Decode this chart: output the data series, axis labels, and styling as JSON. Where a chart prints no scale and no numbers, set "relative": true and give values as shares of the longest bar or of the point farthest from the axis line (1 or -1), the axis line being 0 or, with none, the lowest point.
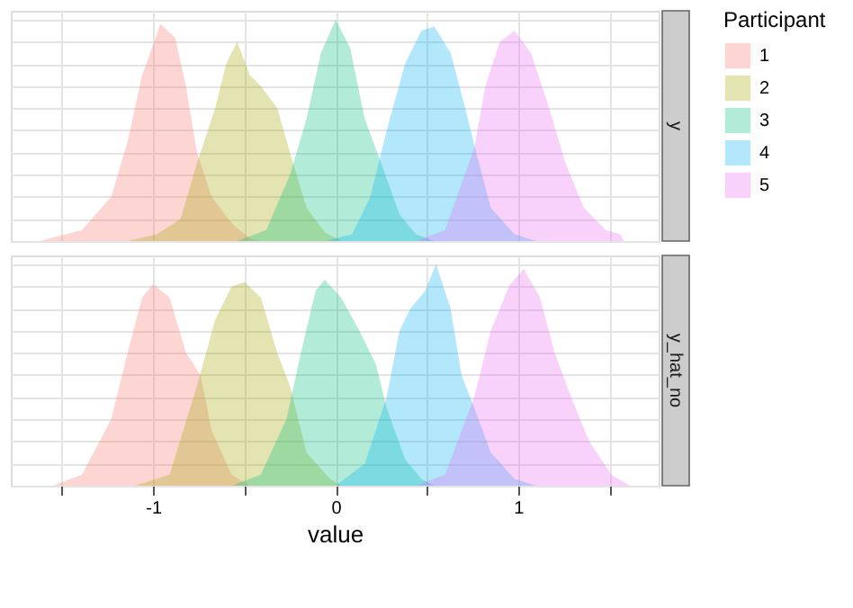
{
  "chart_data": [
    {
      "type": "area",
      "relative": true,
      "y2label": "y",
      "legend_title": "Participant",
      "legend": "right",
      "grid": true,
      "tick_labels": false,
      "xlim": [
        -1.78,
        1.77
      ],
      "xticks": [
        {
          "value": -1.5,
          "label": null
        },
        -1,
        {
          "value": -0.5,
          "label": null
        },
        0,
        {
          "value": 0.5,
          "label": null
        },
        1,
        {
          "value": 1.5,
          "label": null
        }
      ],
      "series": [
        {
          "name": "1",
          "color": "#f8766d",
          "x": [
            -1.62,
            -1.39,
            -1.23,
            -1.14,
            -1.06,
            -0.96,
            -0.88,
            -0.82,
            -0.76,
            -0.68,
            -0.57,
            -0.47,
            -0.41
          ],
          "values": [
            0,
            0.05,
            0.2,
            0.45,
            0.75,
            0.98,
            0.92,
            0.7,
            0.4,
            0.2,
            0.08,
            0.01,
            0
          ]
        },
        {
          "name": "2",
          "color": "#a3a500",
          "x": [
            -1.14,
            -0.98,
            -0.85,
            -0.76,
            -0.66,
            -0.6,
            -0.54,
            -0.47,
            -0.41,
            -0.32,
            -0.25,
            -0.16,
            -0.06,
            0.03
          ],
          "values": [
            0,
            0.03,
            0.1,
            0.35,
            0.6,
            0.8,
            0.9,
            0.75,
            0.7,
            0.6,
            0.4,
            0.15,
            0.04,
            0
          ]
        },
        {
          "name": "3",
          "color": "#00bf7d",
          "x": [
            -0.54,
            -0.38,
            -0.25,
            -0.16,
            -0.08,
            0,
            0.08,
            0.16,
            0.25,
            0.35,
            0.44,
            0.54
          ],
          "values": [
            0,
            0.05,
            0.3,
            0.55,
            0.85,
            1,
            0.87,
            0.55,
            0.35,
            0.12,
            0.03,
            0
          ]
        },
        {
          "name": "4",
          "color": "#00b0f6",
          "x": [
            -0.06,
            0.09,
            0.19,
            0.28,
            0.38,
            0.47,
            0.54,
            0.63,
            0.71,
            0.77,
            0.85,
            0.98,
            1.1
          ],
          "values": [
            0,
            0.03,
            0.2,
            0.5,
            0.8,
            0.95,
            0.97,
            0.85,
            0.6,
            0.4,
            0.15,
            0.03,
            0
          ]
        },
        {
          "name": "5",
          "color": "#e76bf3",
          "x": [
            0.44,
            0.6,
            0.76,
            0.82,
            0.9,
            0.98,
            1.07,
            1.17,
            1.26,
            1.36,
            1.48,
            1.56,
            1.58
          ],
          "values": [
            0,
            0.05,
            0.42,
            0.7,
            0.9,
            0.95,
            0.85,
            0.6,
            0.35,
            0.15,
            0.05,
            0.03,
            0
          ]
        }
      ]
    },
    {
      "type": "area",
      "relative": true,
      "y2label": "y_hat_no",
      "xlabel": "value",
      "grid": true,
      "tick_labels": "x",
      "xlim": [
        -1.78,
        1.77
      ],
      "xticks": [
        {
          "value": -1.5,
          "label": null
        },
        -1,
        {
          "value": -0.5,
          "label": null
        },
        0,
        {
          "value": 0.5,
          "label": null
        },
        1,
        {
          "value": 1.5,
          "label": null
        }
      ],
      "series": [
        {
          "name": "1",
          "color": "#f8766d",
          "x": [
            -1.55,
            -1.39,
            -1.23,
            -1.14,
            -1.06,
            -1.0,
            -0.91,
            -0.82,
            -0.74,
            -0.68,
            -0.57,
            -0.47
          ],
          "values": [
            0,
            0.05,
            0.3,
            0.6,
            0.85,
            0.91,
            0.85,
            0.6,
            0.5,
            0.25,
            0.05,
            0
          ]
        },
        {
          "name": "2",
          "color": "#a3a500",
          "x": [
            -1.1,
            -0.91,
            -0.76,
            -0.66,
            -0.57,
            -0.5,
            -0.41,
            -0.32,
            -0.25,
            -0.16,
            -0.03,
            0.03
          ],
          "values": [
            0,
            0.05,
            0.45,
            0.75,
            0.9,
            0.92,
            0.85,
            0.6,
            0.45,
            0.15,
            0.03,
            0
          ]
        },
        {
          "name": "3",
          "color": "#00bf7d",
          "x": [
            -0.57,
            -0.41,
            -0.27,
            -0.19,
            -0.11,
            -0.06,
            0.03,
            0.13,
            0.22,
            0.28,
            0.38,
            0.47,
            0.54
          ],
          "values": [
            0,
            0.05,
            0.3,
            0.6,
            0.88,
            0.93,
            0.85,
            0.7,
            0.55,
            0.35,
            0.12,
            0.03,
            0
          ]
        },
        {
          "name": "4",
          "color": "#00b0f6",
          "x": [
            0,
            0.16,
            0.28,
            0.35,
            0.41,
            0.49,
            0.55,
            0.63,
            0.69,
            0.76,
            0.85,
            0.98,
            1.1
          ],
          "values": [
            0,
            0.1,
            0.4,
            0.7,
            0.8,
            0.88,
            1,
            0.8,
            0.5,
            0.35,
            0.15,
            0.03,
            0
          ]
        },
        {
          "name": "5",
          "color": "#e76bf3",
          "x": [
            0.44,
            0.6,
            0.76,
            0.85,
            0.95,
            1.03,
            1.12,
            1.2,
            1.29,
            1.39,
            1.51,
            1.61
          ],
          "values": [
            0,
            0.05,
            0.4,
            0.7,
            0.9,
            0.98,
            0.85,
            0.6,
            0.4,
            0.2,
            0.05,
            0
          ]
        }
      ]
    }
  ]
}
